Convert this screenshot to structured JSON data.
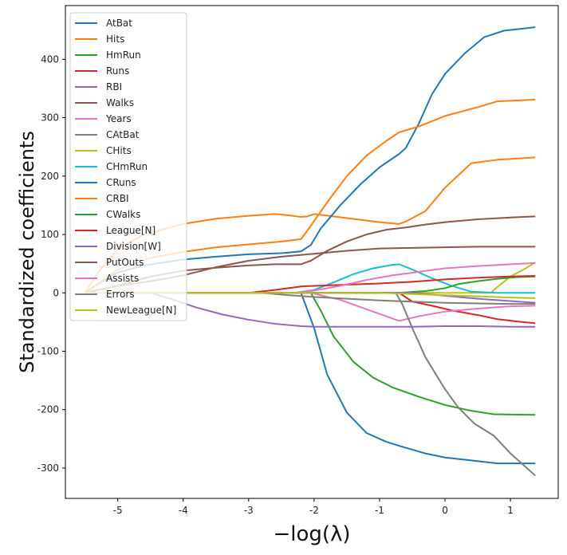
{
  "chart_data": {
    "type": "line",
    "title": "",
    "xlabel": "−log(λ)",
    "ylabel": "Standardized coefficients",
    "xlim": [
      -5.8,
      1.73
    ],
    "ylim": [
      -352,
      492
    ],
    "xticks": [
      -5,
      -4,
      -3,
      -2,
      -1,
      0,
      1
    ],
    "xtick_labels": [
      "-5",
      "-4",
      "-3",
      "-2",
      "-1",
      "0",
      "1"
    ],
    "yticks": [
      -300,
      -200,
      -100,
      0,
      100,
      200,
      300,
      400
    ],
    "ytick_labels": [
      "-300",
      "-200",
      "-100",
      "0",
      "100",
      "200",
      "300",
      "400"
    ],
    "grid": false,
    "legend_position": "top-left",
    "series": [
      {
        "name": "AtBat",
        "color": "#1f77b4",
        "points": [
          [
            -5.5,
            0
          ],
          [
            -2.2,
            0
          ],
          [
            -2,
            -60
          ],
          [
            -1.8,
            -140
          ],
          [
            -1.5,
            -205
          ],
          [
            -1.2,
            -240
          ],
          [
            -0.9,
            -255
          ],
          [
            -0.7,
            -262
          ],
          [
            -0.3,
            -275
          ],
          [
            0,
            -282
          ],
          [
            0.4,
            -287
          ],
          [
            0.8,
            -292
          ],
          [
            1.38,
            -292
          ]
        ]
      },
      {
        "name": "Hits",
        "color": "#ff7f0e",
        "points": [
          [
            -5.5,
            0
          ],
          [
            -5.3,
            35
          ],
          [
            -5,
            75
          ],
          [
            -4.6,
            100
          ],
          [
            -4,
            118
          ],
          [
            -3.5,
            127
          ],
          [
            -3,
            132
          ],
          [
            -2.6,
            135
          ],
          [
            -2.4,
            133
          ],
          [
            -2.2,
            130
          ],
          [
            -2.1,
            131
          ],
          [
            -2,
            135
          ],
          [
            -1.5,
            128
          ],
          [
            -1,
            121
          ],
          [
            -0.7,
            118
          ],
          [
            -0.6,
            122
          ],
          [
            -0.3,
            140
          ],
          [
            0,
            180
          ],
          [
            0.4,
            222
          ],
          [
            0.8,
            228
          ],
          [
            1.38,
            232
          ]
        ]
      },
      {
        "name": "HmRun",
        "color": "#2ca02c",
        "points": [
          [
            -5.5,
            0
          ],
          [
            -2.05,
            0
          ],
          [
            -1.9,
            -30
          ],
          [
            -1.7,
            -75
          ],
          [
            -1.4,
            -118
          ],
          [
            -1.1,
            -145
          ],
          [
            -0.8,
            -162
          ],
          [
            -0.4,
            -178
          ],
          [
            0,
            -192
          ],
          [
            0.4,
            -202
          ],
          [
            0.75,
            -208
          ],
          [
            1.38,
            -209
          ]
        ]
      },
      {
        "name": "Runs",
        "color": "#d62728",
        "points": [
          [
            -5.5,
            0
          ],
          [
            -0.7,
            0
          ],
          [
            -0.5,
            -15
          ],
          [
            -0.2,
            -22
          ],
          [
            0.1,
            -30
          ],
          [
            0.5,
            -38
          ],
          [
            0.8,
            -45
          ],
          [
            1.1,
            -49
          ],
          [
            1.38,
            -52
          ]
        ]
      },
      {
        "name": "RBI",
        "color": "#9467bd",
        "points": [
          [
            -5.5,
            0
          ],
          [
            -4.5,
            0
          ],
          [
            -4.2,
            -10
          ],
          [
            -3.8,
            -25
          ],
          [
            -3.4,
            -37
          ],
          [
            -3,
            -46
          ],
          [
            -2.6,
            -53
          ],
          [
            -2.2,
            -57
          ],
          [
            -2,
            -58
          ],
          [
            -1.5,
            -58
          ],
          [
            -1,
            -58
          ],
          [
            -0.5,
            -58
          ],
          [
            0,
            -57
          ],
          [
            0.5,
            -57
          ],
          [
            1,
            -58
          ],
          [
            1.38,
            -58
          ]
        ]
      },
      {
        "name": "Walks",
        "color": "#8c564b",
        "points": [
          [
            -5.5,
            0
          ],
          [
            -5,
            12
          ],
          [
            -4.5,
            28
          ],
          [
            -4,
            38
          ],
          [
            -3.5,
            43
          ],
          [
            -3,
            47
          ],
          [
            -2.6,
            49
          ],
          [
            -2.2,
            49
          ],
          [
            -2.05,
            55
          ],
          [
            -1.8,
            72
          ],
          [
            -1.5,
            88
          ],
          [
            -1.2,
            100
          ],
          [
            -0.9,
            108
          ],
          [
            -0.6,
            112
          ],
          [
            -0.3,
            117
          ],
          [
            0,
            121
          ],
          [
            0.5,
            126
          ],
          [
            1,
            129
          ],
          [
            1.38,
            131
          ]
        ]
      },
      {
        "name": "Years",
        "color": "#e377c2",
        "points": [
          [
            -5.5,
            0
          ],
          [
            -2.05,
            0
          ],
          [
            -1.6,
            -12
          ],
          [
            -1.2,
            -28
          ],
          [
            -0.9,
            -40
          ],
          [
            -0.7,
            -48
          ],
          [
            -0.4,
            -40
          ],
          [
            0,
            -32
          ],
          [
            0.5,
            -27
          ],
          [
            1,
            -23
          ],
          [
            1.38,
            -22
          ]
        ]
      },
      {
        "name": "CAtBat",
        "color": "#7f7f7f",
        "points": [
          [
            -5.5,
            0
          ],
          [
            -0.75,
            0
          ],
          [
            -0.65,
            -20
          ],
          [
            -0.5,
            -60
          ],
          [
            -0.3,
            -110
          ],
          [
            0,
            -165
          ],
          [
            0.2,
            -196
          ],
          [
            0.45,
            -224
          ],
          [
            0.75,
            -245
          ],
          [
            1,
            -275
          ],
          [
            1.38,
            -313
          ]
        ]
      },
      {
        "name": "CHits",
        "color": "#bcbd22",
        "points": [
          [
            -5.5,
            0
          ],
          [
            0.7,
            0
          ],
          [
            0.8,
            10
          ],
          [
            1,
            28
          ],
          [
            1.2,
            40
          ],
          [
            1.38,
            52
          ]
        ]
      },
      {
        "name": "CHmRun",
        "color": "#17becf",
        "points": [
          [
            -5.5,
            0
          ],
          [
            -2.3,
            0
          ],
          [
            -2,
            5
          ],
          [
            -1.7,
            18
          ],
          [
            -1.4,
            32
          ],
          [
            -1.1,
            42
          ],
          [
            -0.8,
            48
          ],
          [
            -0.7,
            49
          ],
          [
            -0.5,
            40
          ],
          [
            -0.2,
            25
          ],
          [
            0.1,
            12
          ],
          [
            0.4,
            2
          ],
          [
            0.8,
            0
          ],
          [
            1.38,
            0
          ]
        ]
      },
      {
        "name": "CRuns",
        "color": "#1f77b4",
        "points": [
          [
            -5.5,
            0
          ],
          [
            -5.3,
            15
          ],
          [
            -5,
            35
          ],
          [
            -4.6,
            47
          ],
          [
            -4,
            57
          ],
          [
            -3.5,
            62
          ],
          [
            -3,
            66
          ],
          [
            -2.5,
            68
          ],
          [
            -2.2,
            71
          ],
          [
            -2.05,
            82
          ],
          [
            -1.9,
            110
          ],
          [
            -1.6,
            150
          ],
          [
            -1.3,
            185
          ],
          [
            -1,
            215
          ],
          [
            -0.7,
            238
          ],
          [
            -0.6,
            248
          ],
          [
            -0.4,
            290
          ],
          [
            -0.2,
            340
          ],
          [
            0,
            375
          ],
          [
            0.3,
            410
          ],
          [
            0.6,
            438
          ],
          [
            0.9,
            449
          ],
          [
            1.38,
            455
          ]
        ]
      },
      {
        "name": "CRBI",
        "color": "#ff7f0e",
        "points": [
          [
            -5.5,
            0
          ],
          [
            -5,
            40
          ],
          [
            -4.5,
            60
          ],
          [
            -4,
            70
          ],
          [
            -3.5,
            78
          ],
          [
            -3,
            83
          ],
          [
            -2.5,
            88
          ],
          [
            -2.2,
            92
          ],
          [
            -2.1,
            107
          ],
          [
            -1.8,
            155
          ],
          [
            -1.5,
            200
          ],
          [
            -1.2,
            235
          ],
          [
            -0.9,
            260
          ],
          [
            -0.7,
            275
          ],
          [
            -0.4,
            285
          ],
          [
            0,
            303
          ],
          [
            0.5,
            318
          ],
          [
            0.8,
            328
          ],
          [
            1.38,
            331
          ]
        ]
      },
      {
        "name": "CWalks",
        "color": "#2ca02c",
        "points": [
          [
            -5.5,
            0
          ],
          [
            -0.7,
            0
          ],
          [
            -0.3,
            3
          ],
          [
            0,
            8
          ],
          [
            0.2,
            15
          ],
          [
            0.5,
            20
          ],
          [
            0.8,
            24
          ],
          [
            1.1,
            27
          ],
          [
            1.38,
            28
          ]
        ]
      },
      {
        "name": "League[N]",
        "color": "#d62728",
        "points": [
          [
            -5.5,
            0
          ],
          [
            -3,
            0
          ],
          [
            -2.6,
            5
          ],
          [
            -2.2,
            11
          ],
          [
            -2,
            12
          ],
          [
            -1.5,
            14
          ],
          [
            -1,
            16
          ],
          [
            -0.5,
            19
          ],
          [
            0,
            23
          ],
          [
            0.5,
            26
          ],
          [
            1,
            28
          ],
          [
            1.38,
            29
          ]
        ]
      },
      {
        "name": "Division[W]",
        "color": "#9467bd",
        "points": [
          [
            -5.5,
            0
          ],
          [
            -0.5,
            0
          ],
          [
            0,
            -5
          ],
          [
            0.5,
            -10
          ],
          [
            1,
            -14
          ],
          [
            1.38,
            -17
          ]
        ]
      },
      {
        "name": "PutOuts",
        "color": "#8c564b",
        "points": [
          [
            -5.5,
            0
          ],
          [
            -5,
            12
          ],
          [
            -4.5,
            20
          ],
          [
            -4,
            30
          ],
          [
            -3.5,
            44
          ],
          [
            -3,
            55
          ],
          [
            -2.5,
            62
          ],
          [
            -2,
            67
          ],
          [
            -1.5,
            72
          ],
          [
            -1,
            76
          ],
          [
            -0.5,
            77
          ],
          [
            0,
            78
          ],
          [
            0.5,
            79
          ],
          [
            1,
            79
          ],
          [
            1.38,
            79
          ]
        ]
      },
      {
        "name": "Assists",
        "color": "#e377c2",
        "points": [
          [
            -5.5,
            0
          ],
          [
            -2.3,
            0
          ],
          [
            -2,
            4
          ],
          [
            -1.6,
            12
          ],
          [
            -1.2,
            22
          ],
          [
            -0.8,
            30
          ],
          [
            -0.4,
            36
          ],
          [
            0,
            42
          ],
          [
            0.5,
            46
          ],
          [
            1,
            49
          ],
          [
            1.38,
            51
          ]
        ]
      },
      {
        "name": "Errors",
        "color": "#7f7f7f",
        "points": [
          [
            -5.5,
            0
          ],
          [
            -2.8,
            0
          ],
          [
            -2.4,
            -4
          ],
          [
            -2,
            -7
          ],
          [
            -1.5,
            -10
          ],
          [
            -1,
            -13
          ],
          [
            -0.5,
            -15
          ],
          [
            0,
            -17
          ],
          [
            0.5,
            -18
          ],
          [
            1,
            -19
          ],
          [
            1.38,
            -19
          ]
        ]
      },
      {
        "name": "NewLeague[N]",
        "color": "#bcbd22",
        "points": [
          [
            -5.5,
            0
          ],
          [
            -1,
            0
          ],
          [
            -0.5,
            -2
          ],
          [
            0,
            -4
          ],
          [
            0.5,
            -6
          ],
          [
            1,
            -8
          ],
          [
            1.38,
            -9
          ]
        ]
      }
    ]
  }
}
